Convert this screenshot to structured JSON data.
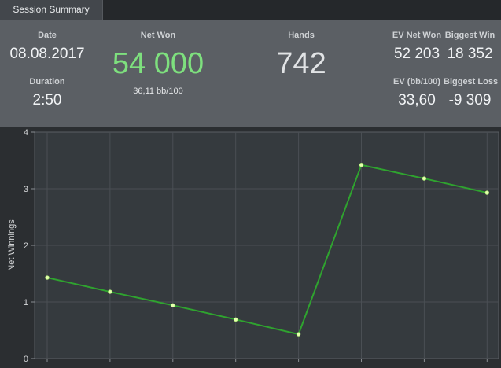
{
  "tab": {
    "label": "Session Summary"
  },
  "summary": {
    "date_label": "Date",
    "date_value": "08.08.2017",
    "duration_label": "Duration",
    "duration_value": "2:50",
    "net_won_label": "Net Won",
    "net_won_value": "54 000",
    "net_won_sub": "36,11 bb/100",
    "hands_label": "Hands",
    "hands_value": "742",
    "ev_net_won_label": "EV Net Won",
    "ev_net_won_value": "52 203",
    "biggest_win_label": "Biggest Win",
    "biggest_win_value": "18 352",
    "ev_bb_label": "EV (bb/100)",
    "ev_bb_value": "33,60",
    "biggest_loss_label": "Biggest Loss",
    "biggest_loss_value": "-9 309"
  },
  "colors": {
    "accent_green": "#7ee07e",
    "line_green": "#2fa32f"
  },
  "chart_data": {
    "type": "line",
    "title": "",
    "xlabel": "",
    "ylabel": "Net Winnings",
    "ylim": [
      0,
      4
    ],
    "yticks": [
      "0",
      "1",
      "2",
      "3",
      "4"
    ],
    "grid": true,
    "series": [
      {
        "values": [
          1.43,
          1.18,
          0.94,
          0.69,
          0.43,
          3.42,
          3.18,
          2.93
        ]
      }
    ]
  }
}
